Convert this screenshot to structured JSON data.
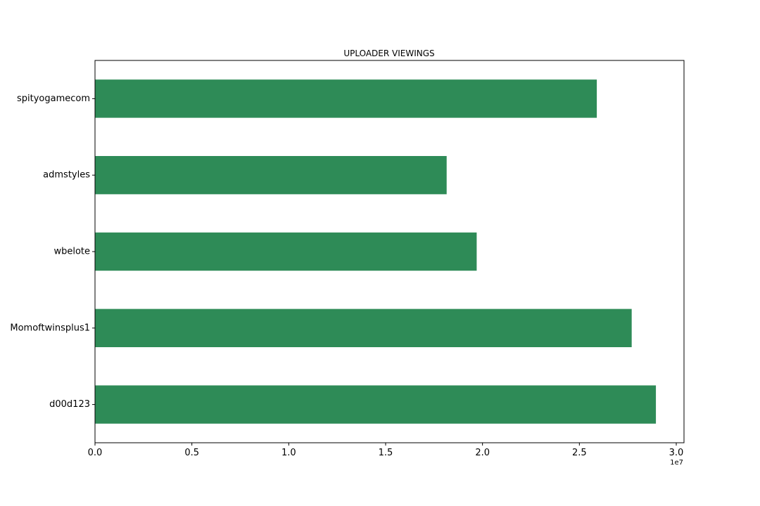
{
  "chart_data": {
    "type": "bar",
    "orientation": "horizontal",
    "title": "UPLOADER VIEWINGS",
    "xlabel": "",
    "ylabel": "",
    "categories": [
      "spityogamecom",
      "admstyles",
      "wbelote",
      "Momoftwinsplus1",
      "d00d123"
    ],
    "values": [
      25900000,
      18150000,
      19700000,
      27700000,
      28950000
    ],
    "xlim": [
      0,
      30400000
    ],
    "x_ticks": [
      0,
      5000000,
      10000000,
      15000000,
      20000000,
      25000000,
      30000000
    ],
    "x_tick_labels": [
      "0.0",
      "0.5",
      "1.0",
      "1.5",
      "2.0",
      "2.5",
      "3.0"
    ],
    "x_offset_label": "1e7",
    "grid": false,
    "bar_color": "#2e8b57"
  }
}
